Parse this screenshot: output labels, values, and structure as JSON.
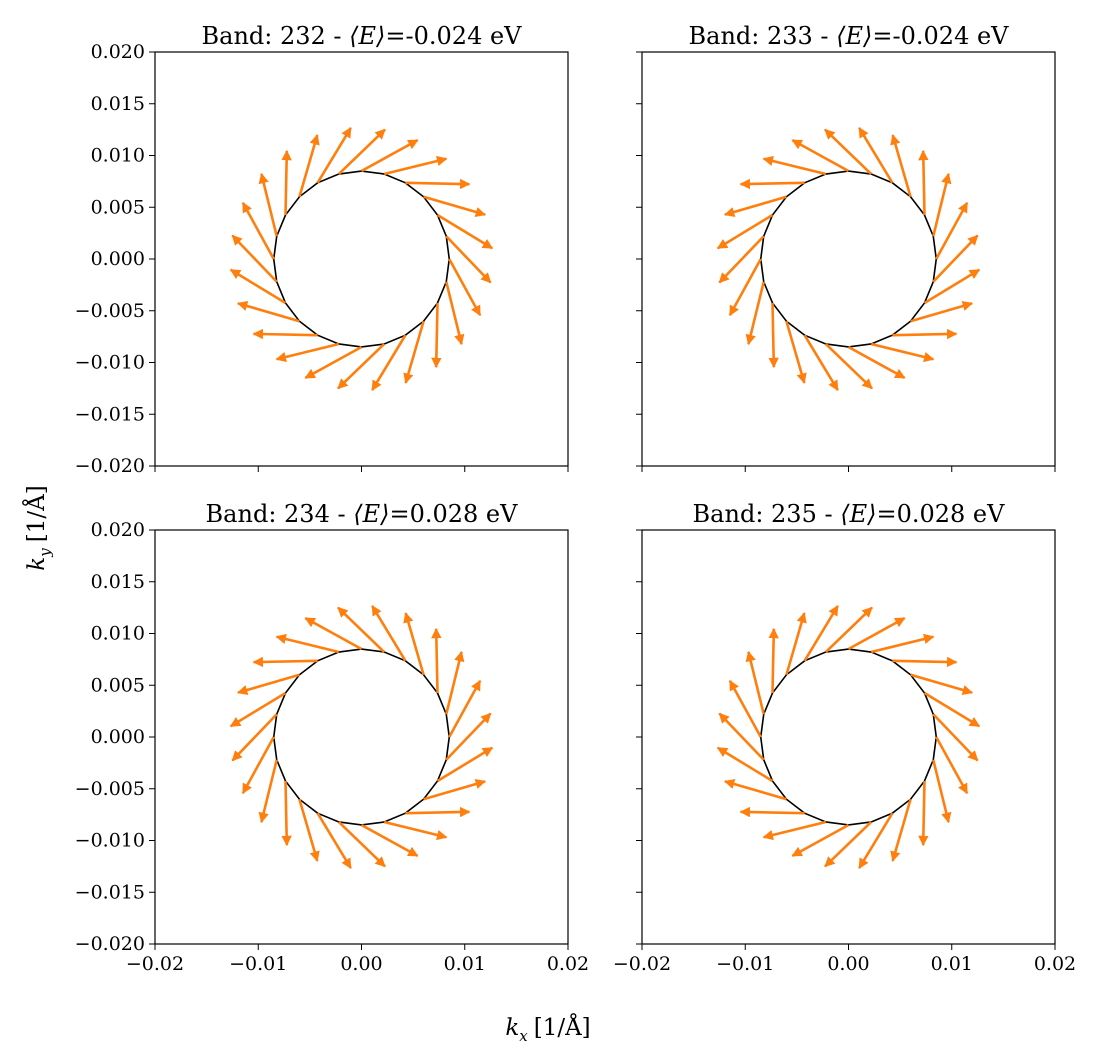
{
  "figure": {
    "xlabel": "k_x [1/Å]",
    "xlabel_main": "k",
    "xlabel_sub": "x",
    "xlabel_unit": "[1/Å]",
    "ylabel": "k_y [1/Å]",
    "ylabel_main": "k",
    "ylabel_sub": "y",
    "ylabel_unit": "[1/Å]",
    "arrow_color": "#ff7f0e",
    "contour_color": "#000000"
  },
  "chart_data": [
    {
      "type": "quiver",
      "title": "Band: 232 - ⟨E⟩=-0.024 eV",
      "title_prefix": "Band: 232 - ",
      "title_symbol": "⟨E⟩",
      "title_suffix": "=-0.024 eV",
      "xlim": [
        -0.02,
        0.02
      ],
      "ylim": [
        -0.02,
        0.02
      ],
      "xticks": [],
      "yticks": [
        "0.020",
        "0.015",
        "0.010",
        "0.005",
        "0.000",
        "−0.005",
        "−0.010",
        "−0.015",
        "−0.020"
      ],
      "ytick_values": [
        0.02,
        0.015,
        0.01,
        0.005,
        0,
        -0.005,
        -0.01,
        -0.015,
        -0.02
      ],
      "contour_radius": 0.0085,
      "n_arrows": 24,
      "arrow_length": 0.0062,
      "spin_rotation": "clockwise"
    },
    {
      "type": "quiver",
      "title": "Band: 233 - ⟨E⟩=-0.024 eV",
      "title_prefix": "Band: 233 - ",
      "title_symbol": "⟨E⟩",
      "title_suffix": "=-0.024 eV",
      "xlim": [
        -0.02,
        0.02
      ],
      "ylim": [
        -0.02,
        0.02
      ],
      "xticks": [],
      "yticks": [],
      "ytick_values": [
        0.02,
        0.015,
        0.01,
        0.005,
        0,
        -0.005,
        -0.01,
        -0.015,
        -0.02
      ],
      "contour_radius": 0.0085,
      "n_arrows": 24,
      "arrow_length": 0.0062,
      "spin_rotation": "counterclockwise"
    },
    {
      "type": "quiver",
      "title": "Band: 234 - ⟨E⟩=0.028 eV",
      "title_prefix": "Band: 234 - ",
      "title_symbol": "⟨E⟩",
      "title_suffix": "=0.028 eV",
      "xlim": [
        -0.02,
        0.02
      ],
      "ylim": [
        -0.02,
        0.02
      ],
      "xticks": [
        "−0.02",
        "−0.01",
        "0.00",
        "0.01",
        "0.02"
      ],
      "xtick_values": [
        -0.02,
        -0.01,
        0,
        0.01,
        0.02
      ],
      "yticks": [
        "0.020",
        "0.015",
        "0.010",
        "0.005",
        "0.000",
        "−0.005",
        "−0.010",
        "−0.015",
        "−0.020"
      ],
      "ytick_values": [
        0.02,
        0.015,
        0.01,
        0.005,
        0,
        -0.005,
        -0.01,
        -0.015,
        -0.02
      ],
      "contour_radius": 0.0085,
      "n_arrows": 24,
      "arrow_length": 0.0062,
      "spin_rotation": "counterclockwise"
    },
    {
      "type": "quiver",
      "title": "Band: 235 - ⟨E⟩=0.028 eV",
      "title_prefix": "Band: 235 - ",
      "title_symbol": "⟨E⟩",
      "title_suffix": "=0.028 eV",
      "xlim": [
        -0.02,
        0.02
      ],
      "ylim": [
        -0.02,
        0.02
      ],
      "xticks": [
        "−0.02",
        "−0.01",
        "0.00",
        "0.01",
        "0.02"
      ],
      "xtick_values": [
        -0.02,
        -0.01,
        0,
        0.01,
        0.02
      ],
      "yticks": [],
      "ytick_values": [
        0.02,
        0.015,
        0.01,
        0.005,
        0,
        -0.005,
        -0.01,
        -0.015,
        -0.02
      ],
      "contour_radius": 0.0085,
      "n_arrows": 24,
      "arrow_length": 0.0062,
      "spin_rotation": "clockwise"
    }
  ]
}
